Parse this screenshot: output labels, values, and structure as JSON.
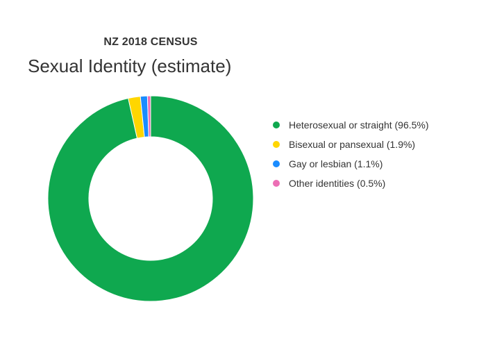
{
  "chart_data": {
    "type": "pie",
    "variant": "donut",
    "kicker": "NZ 2018 CENSUS",
    "title": "Sexual Identity (estimate)",
    "slices": [
      {
        "label": "Heterosexual or straight (96.5%)",
        "value": 96.5,
        "color": "#0fa84f"
      },
      {
        "label": "Bisexual or pansexual (1.9%)",
        "value": 1.9,
        "color": "#ffd600"
      },
      {
        "label": "Gay or lesbian (1.1%)",
        "value": 1.1,
        "color": "#1a8cff"
      },
      {
        "label": "Other identities (0.5%)",
        "value": 0.5,
        "color": "#ec6fb5"
      }
    ],
    "legend_position": "right"
  }
}
